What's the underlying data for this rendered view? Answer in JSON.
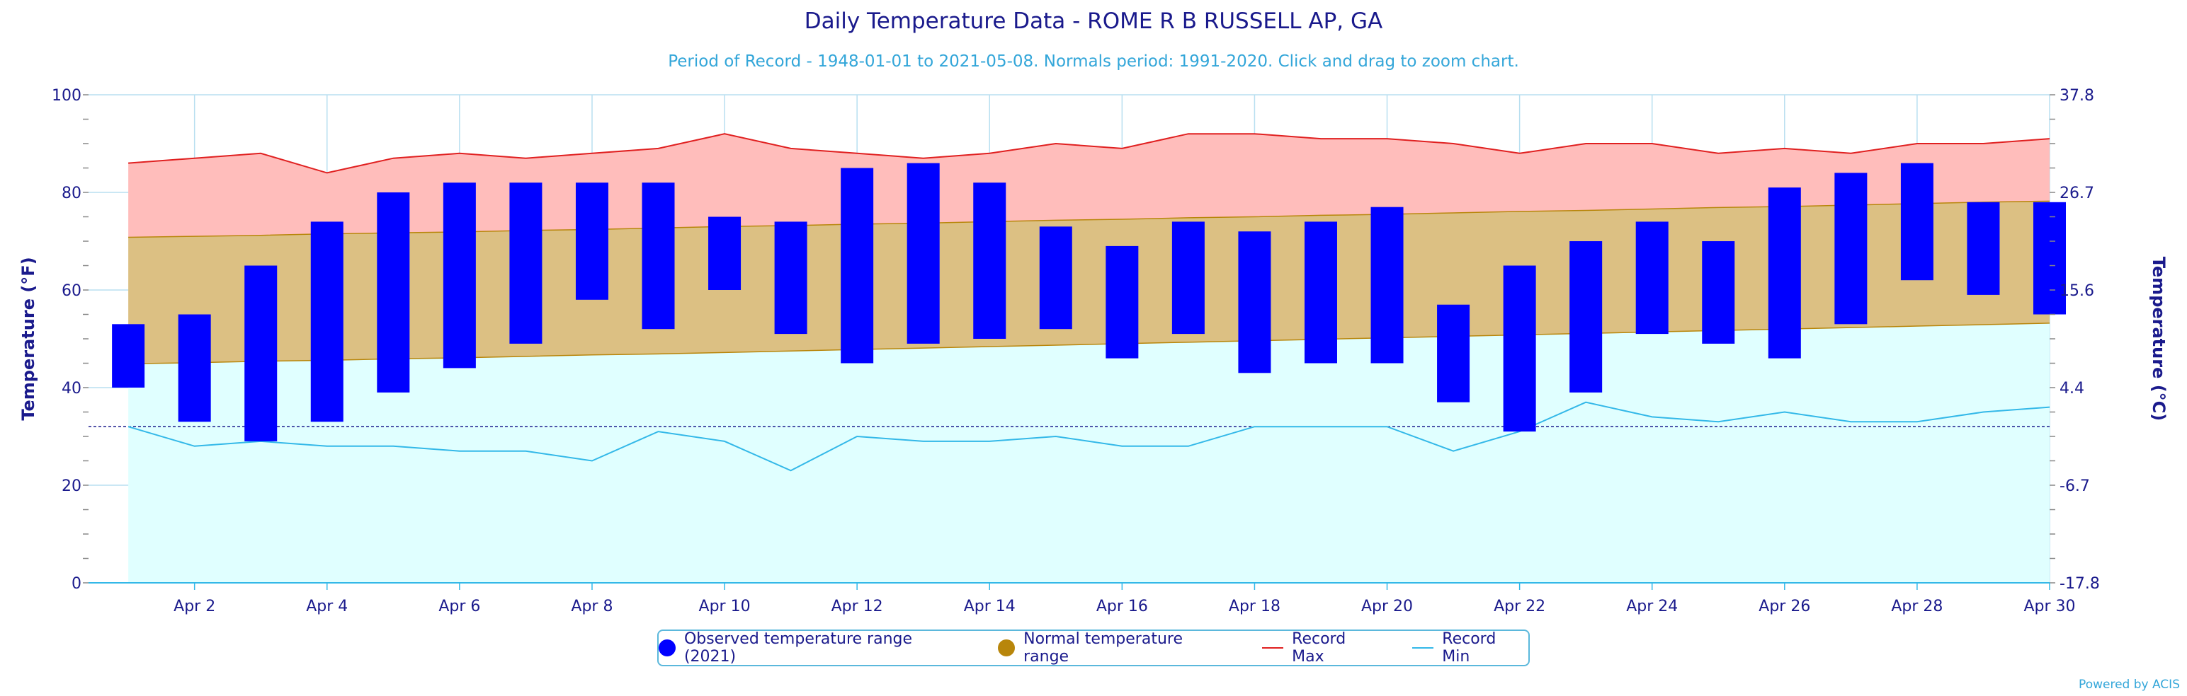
{
  "chart_data": {
    "type": "bar",
    "title": "Daily Temperature Data - ROME R B RUSSELL AP, GA",
    "subtitle": "Period of Record - 1948-01-01 to 2021-05-08. Normals period: 1991-2020. Click and drag to zoom chart.",
    "ylabel": "Temperature (°F)",
    "ylabel_right": "Temperature (°C)",
    "ylim": [
      0,
      100
    ],
    "y_ticks": [
      0,
      20,
      40,
      60,
      80,
      100
    ],
    "y_ticks_right": [
      "-17.8",
      "-6.7",
      "4.4",
      "15.6",
      "26.7",
      "37.8"
    ],
    "freezing_line": 32,
    "grid": true,
    "legend_position": "bottom",
    "x": [
      1,
      2,
      3,
      4,
      5,
      6,
      7,
      8,
      9,
      10,
      11,
      12,
      13,
      14,
      15,
      16,
      17,
      18,
      19,
      20,
      21,
      22,
      23,
      24,
      25,
      26,
      27,
      28,
      29,
      30
    ],
    "x_tick_labels": [
      "Apr 2",
      "Apr 4",
      "Apr 6",
      "Apr 8",
      "Apr 10",
      "Apr 12",
      "Apr 14",
      "Apr 16",
      "Apr 18",
      "Apr 20",
      "Apr 22",
      "Apr 24",
      "Apr 26",
      "Apr 28",
      "Apr 30"
    ],
    "x_tick_days": [
      2,
      4,
      6,
      8,
      10,
      12,
      14,
      16,
      18,
      20,
      22,
      24,
      26,
      28,
      30
    ],
    "series": [
      {
        "name": "Observed temperature range (2021)",
        "color": "#0000ff",
        "low": [
          40,
          33,
          29,
          33,
          39,
          44,
          49,
          58,
          52,
          60,
          51,
          45,
          49,
          50,
          52,
          46,
          51,
          43,
          45,
          45,
          37,
          31,
          39,
          51,
          49,
          46,
          53,
          62,
          59,
          55
        ],
        "high": [
          53,
          55,
          65,
          74,
          80,
          82,
          82,
          82,
          82,
          75,
          74,
          85,
          86,
          82,
          73,
          69,
          74,
          72,
          74,
          77,
          57,
          65,
          70,
          74,
          70,
          81,
          84,
          86,
          78,
          78
        ]
      },
      {
        "name": "Normal temperature range",
        "color": "#b8860b",
        "fill": "#dcc083",
        "low": [
          44.9,
          45.1,
          45.4,
          45.6,
          45.9,
          46.1,
          46.4,
          46.7,
          46.9,
          47.2,
          47.5,
          47.8,
          48.1,
          48.4,
          48.7,
          49.0,
          49.3,
          49.6,
          49.9,
          50.2,
          50.5,
          50.8,
          51.1,
          51.4,
          51.7,
          52.0,
          52.3,
          52.6,
          52.9,
          53.2
        ],
        "high": [
          70.8,
          71.0,
          71.2,
          71.5,
          71.7,
          71.9,
          72.2,
          72.4,
          72.7,
          73.0,
          73.2,
          73.5,
          73.7,
          74.0,
          74.3,
          74.5,
          74.8,
          75.0,
          75.3,
          75.5,
          75.8,
          76.1,
          76.3,
          76.6,
          76.9,
          77.1,
          77.4,
          77.7,
          78.0,
          78.2
        ]
      },
      {
        "name": "Record Max",
        "color": "#e02020",
        "fill": "#ffbdbb",
        "values": [
          86,
          87,
          88,
          84,
          87,
          88,
          87,
          88,
          89,
          92,
          89,
          88,
          87,
          88,
          90,
          89,
          92,
          92,
          91,
          91,
          90,
          88,
          90,
          90,
          88,
          89,
          88,
          90,
          90,
          91
        ]
      },
      {
        "name": "Record Min",
        "color": "#33b8e8",
        "fill": "#e0ffff",
        "values": [
          32,
          28,
          29,
          28,
          28,
          27,
          27,
          25,
          31,
          29,
          23,
          30,
          29,
          29,
          30,
          28,
          28,
          32,
          32,
          32,
          27,
          31,
          37,
          34,
          33,
          35,
          33,
          33,
          35,
          36
        ]
      }
    ]
  },
  "footer": {
    "powered_by": "Powered by ACIS"
  }
}
